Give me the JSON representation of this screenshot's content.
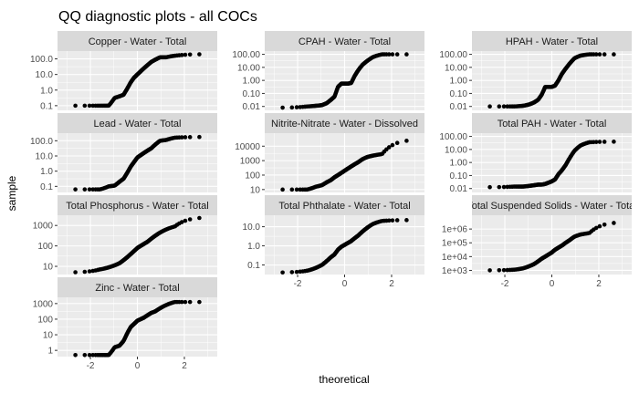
{
  "chart_data": {
    "type": "scatter",
    "title": "QQ diagnostic plots - all COCs",
    "xlabel": "theoretical",
    "ylabel": "sample",
    "xlim": [
      -3.4,
      3.4
    ],
    "x_ticks": [
      -2,
      0,
      2
    ],
    "x_tick_labels": [
      "-2",
      "0",
      "2"
    ],
    "grid": true,
    "x_scale": "linear",
    "y_scale": "log",
    "point_color": "#000000",
    "panel_background": "#ebebeb",
    "strip_background": "#d9d9d9",
    "n_points_per_panel": 120,
    "panels": [
      {
        "label": "Copper - Water - Total",
        "ylim_log10": [
          -1.3,
          2.5
        ],
        "y_ticks_log10": [
          -1,
          0,
          1,
          2
        ],
        "y_tick_labels": [
          "0.1",
          "1.0",
          "10.0",
          "100.0"
        ],
        "quantiles_log10": [
          -1,
          -1,
          -1,
          -0.5,
          -0.4,
          -0.3,
          0.1,
          0.5,
          0.8,
          1.0,
          1.2,
          1.4,
          1.6,
          1.8,
          1.95,
          2.1,
          2.1,
          2.2,
          2.3
        ]
      },
      {
        "label": "CPAH - Water - Total",
        "ylim_log10": [
          -2.3,
          2.25
        ],
        "y_ticks_log10": [
          -2,
          -1,
          0,
          1,
          2
        ],
        "y_tick_labels": [
          "0.01",
          "0.10",
          "1.00",
          "10.00",
          "100.00"
        ],
        "quantiles_log10": [
          -2.1,
          -2.0,
          -1.95,
          -1.9,
          -1.75,
          -1.5,
          -1.25,
          -0.5,
          -0.25,
          -0.25,
          -0.25,
          -0.2,
          0.35,
          0.8,
          1.2,
          1.5,
          1.8,
          2.0,
          2.0
        ]
      },
      {
        "label": "HPAH - Water - Total",
        "ylim_log10": [
          -2.3,
          2.25
        ],
        "y_ticks_log10": [
          -2,
          -1,
          0,
          1,
          2
        ],
        "y_tick_labels": [
          "0.01",
          "0.10",
          "1.00",
          "10.00",
          "100.00"
        ],
        "quantiles_log10": [
          -2.0,
          -2.0,
          -1.95,
          -1.85,
          -1.7,
          -1.5,
          -1.1,
          -0.5,
          -0.5,
          -0.5,
          -0.4,
          0.0,
          0.5,
          0.9,
          1.3,
          1.7,
          1.9,
          2.0,
          2.0
        ]
      },
      {
        "label": "Lead - Water - Total",
        "ylim_log10": [
          -1.4,
          2.5
        ],
        "y_ticks_log10": [
          -1,
          0,
          1,
          2
        ],
        "y_tick_labels": [
          "0.1",
          "1.0",
          "10.0",
          "100.0"
        ],
        "quantiles_log10": [
          -1.2,
          -1.2,
          -1.0,
          -0.95,
          -0.7,
          -0.5,
          -0.1,
          0.3,
          0.6,
          0.9,
          1.05,
          1.2,
          1.35,
          1.5,
          1.75,
          2.0,
          2.05,
          2.2,
          2.25
        ]
      },
      {
        "label": "Nitrite-Nitrate - Water - Dissolved",
        "ylim_log10": [
          0.8,
          4.9
        ],
        "y_ticks_log10": [
          1,
          2,
          3,
          4
        ],
        "y_tick_labels": [
          "10",
          "100",
          "1000",
          "10000"
        ],
        "quantiles_log10": [
          1.0,
          1.0,
          1.2,
          1.3,
          1.5,
          1.65,
          1.85,
          2.0,
          2.15,
          2.3,
          2.45,
          2.6,
          2.75,
          2.9,
          3.1,
          3.25,
          3.35,
          3.45,
          4.45
        ]
      },
      {
        "label": "Total PAH - Water - Total",
        "ylim_log10": [
          -2.3,
          2.25
        ],
        "y_ticks_log10": [
          -2,
          -1,
          0,
          1,
          2
        ],
        "y_tick_labels": [
          "0.01",
          "0.10",
          "1.00",
          "10.00",
          "100.00"
        ],
        "quantiles_log10": [
          -1.9,
          -1.85,
          -1.85,
          -1.8,
          -1.75,
          -1.7,
          -1.7,
          -1.65,
          -1.55,
          -1.45,
          -1.3,
          -0.9,
          -0.6,
          -0.2,
          0.35,
          0.9,
          1.3,
          1.55,
          1.6
        ]
      },
      {
        "label": "Total Phosphorus - Water - Total",
        "ylim_log10": [
          0.6,
          3.5
        ],
        "y_ticks_log10": [
          1,
          2,
          3
        ],
        "y_tick_labels": [
          "10",
          "100",
          "1000"
        ],
        "quantiles_log10": [
          0.7,
          0.85,
          0.95,
          1.05,
          1.15,
          1.3,
          1.45,
          1.6,
          1.75,
          1.9,
          2.0,
          2.1,
          2.2,
          2.35,
          2.5,
          2.65,
          2.8,
          2.95,
          3.4
        ]
      },
      {
        "label": "Total Phthalate - Water - Total",
        "ylim_log10": [
          -1.5,
          1.6
        ],
        "y_ticks_log10": [
          -1,
          0,
          1
        ],
        "y_tick_labels": [
          "0.1",
          "1.0",
          "10.0"
        ],
        "quantiles_log10": [
          -1.4,
          -1.3,
          -1.15,
          -1.0,
          -0.8,
          -0.6,
          -0.45,
          -0.2,
          -0.05,
          0.05,
          0.15,
          0.25,
          0.4,
          0.55,
          0.75,
          0.95,
          1.15,
          1.3,
          1.35
        ]
      },
      {
        "label": "Total Suspended Solids - Water - Total",
        "ylim_log10": [
          2.7,
          7.0
        ],
        "y_ticks_log10": [
          3,
          4,
          5,
          6
        ],
        "y_tick_labels": [
          "1e+03",
          "1e+04",
          "1e+05",
          "1e+06"
        ],
        "quantiles_log10": [
          3.0,
          3.05,
          3.15,
          3.3,
          3.45,
          3.65,
          3.85,
          4.0,
          4.15,
          4.3,
          4.5,
          4.65,
          4.8,
          5.0,
          5.2,
          5.45,
          5.6,
          5.7,
          6.5
        ]
      },
      {
        "label": "Zinc - Water - Total",
        "ylim_log10": [
          -0.4,
          3.4
        ],
        "y_ticks_log10": [
          0,
          1,
          2,
          3
        ],
        "y_tick_labels": [
          "1",
          "10",
          "100",
          "1000"
        ],
        "quantiles_log10": [
          -0.3,
          -0.3,
          -0.3,
          0.2,
          0.3,
          0.6,
          1.1,
          1.5,
          1.7,
          1.9,
          2.0,
          2.1,
          2.25,
          2.4,
          2.5,
          2.7,
          2.9,
          3.1,
          3.1
        ]
      }
    ]
  }
}
